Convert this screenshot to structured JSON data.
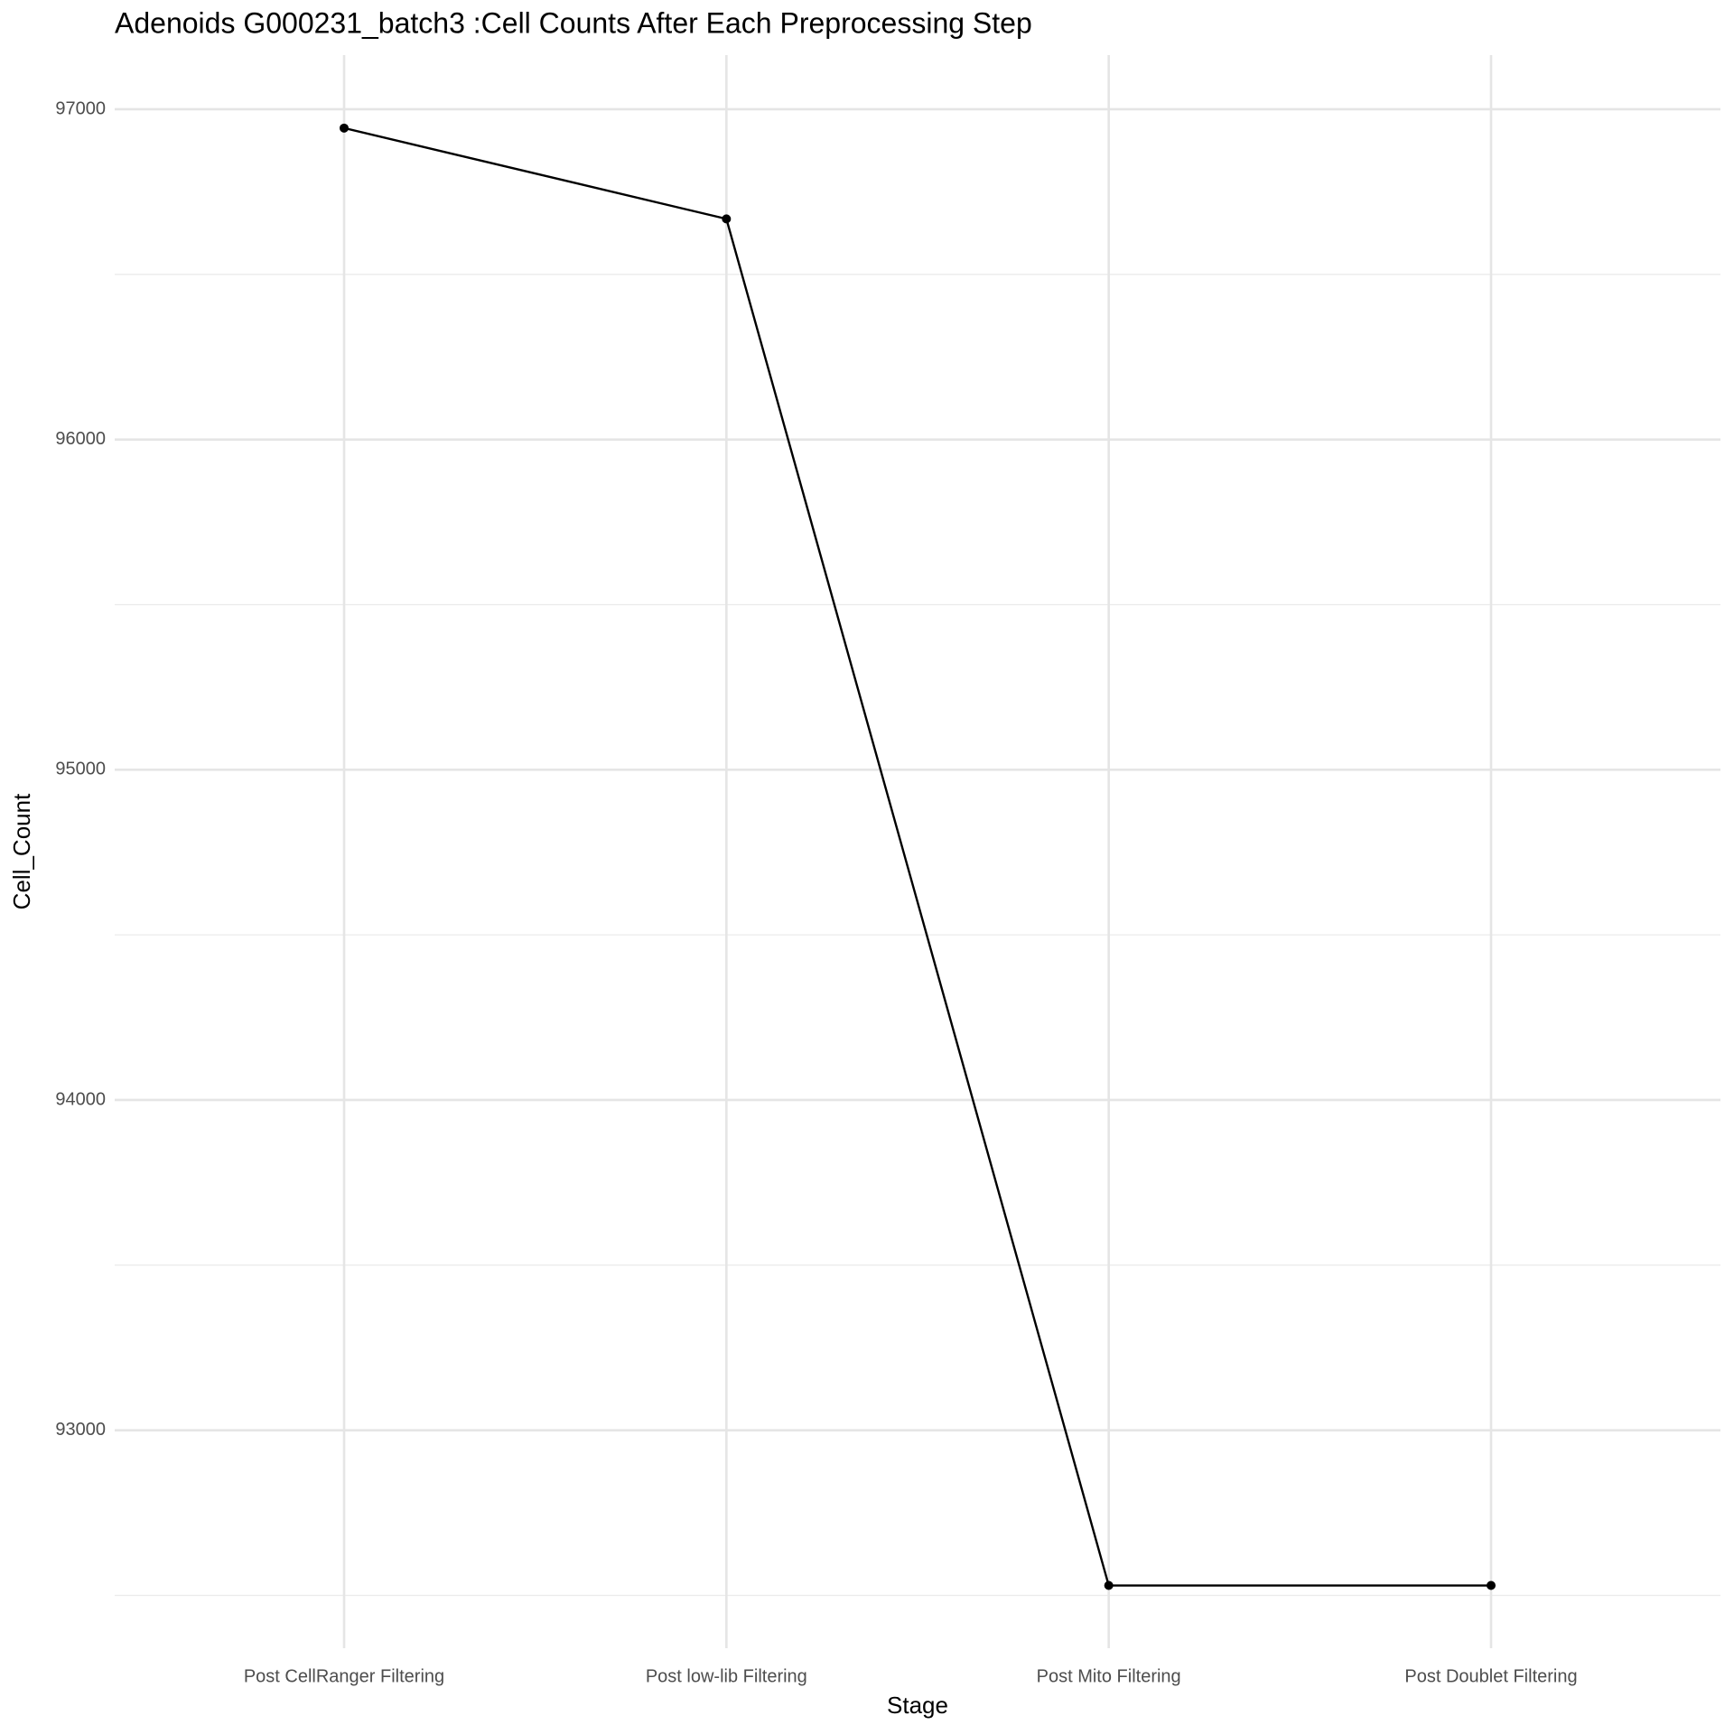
{
  "chart_data": {
    "type": "line",
    "title": "Adenoids G000231_batch3 :Cell Counts After Each Preprocessing Step",
    "x_label": "Stage",
    "y_label": "Cell_Count",
    "categories": [
      "Post CellRanger Filtering",
      "Post low-lib Filtering",
      "Post Mito Filtering",
      "Post Doublet Filtering"
    ],
    "values": [
      96943,
      96668,
      92530,
      92530
    ],
    "color": "#000000",
    "ylim": [
      92340,
      97164
    ],
    "yticks": [
      93000,
      94000,
      95000,
      96000,
      97000
    ],
    "y_minor_ticks": [
      92500,
      93500,
      94500,
      95500,
      96500
    ],
    "grid": true
  }
}
